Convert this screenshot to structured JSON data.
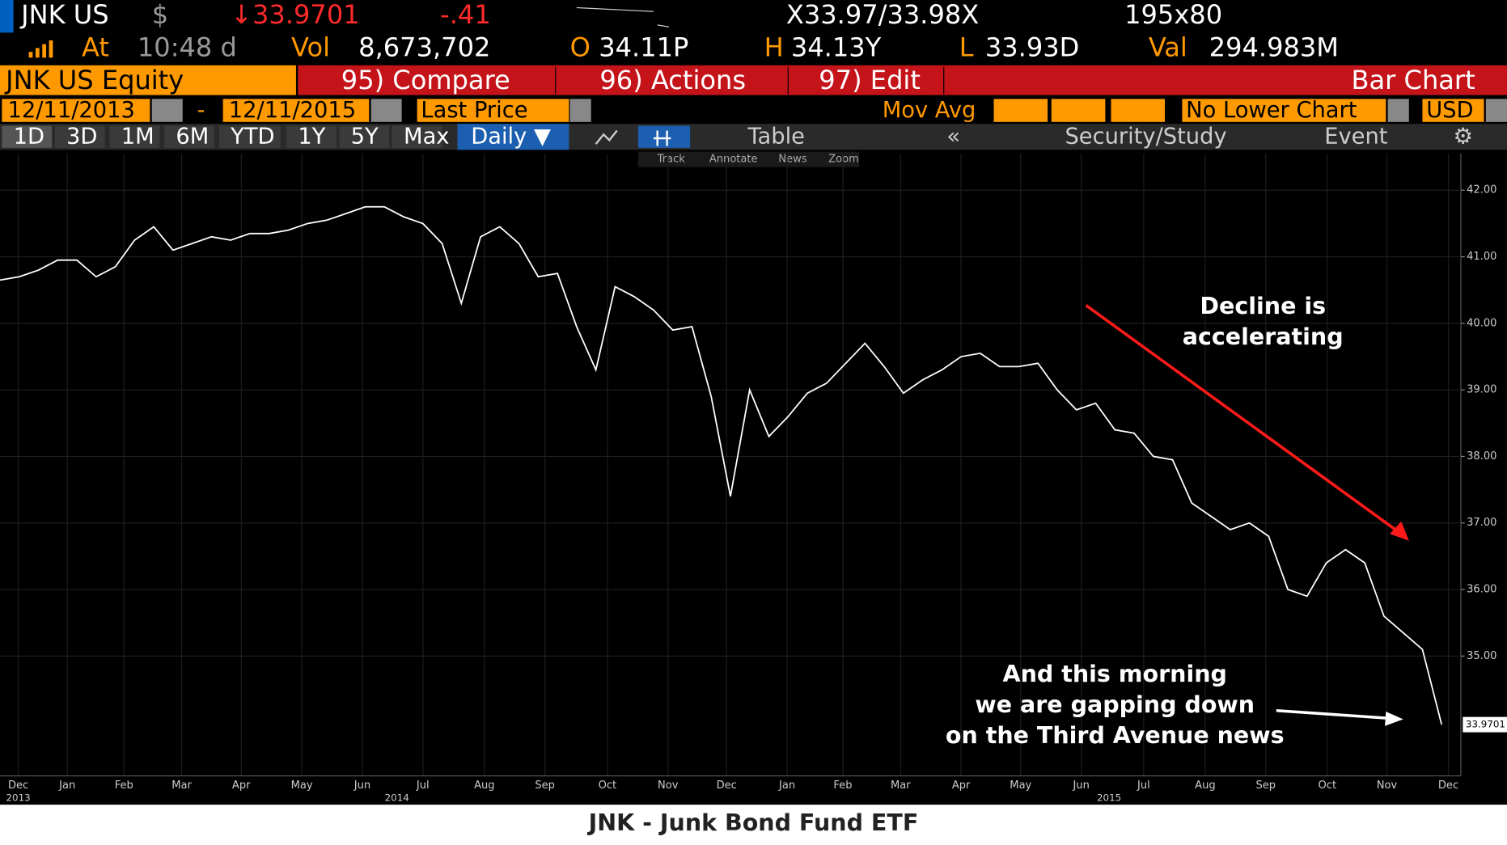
{
  "header": {
    "ticker": "JNK US",
    "currency": "$",
    "last": "↓33.9701",
    "change": "-.41",
    "bid_ask": "X33.97/33.98X",
    "size": "195x80",
    "at_label": "At",
    "time": "10:48 d",
    "vol_label": "Vol",
    "volume": "8,673,702",
    "open_label": "O",
    "open": "34.11P",
    "high_label": "H",
    "high": "34.13Y",
    "low_label": "L",
    "low": "33.93D",
    "val_label": "Val",
    "value": "294.983M"
  },
  "menu": {
    "security": "JNK US Equity",
    "compare": "95) Compare",
    "actions": "96) Actions",
    "edit": "97) Edit",
    "view": "Bar Chart"
  },
  "settings": {
    "start": "12/11/2013",
    "dash": "-",
    "end": "12/11/2015",
    "field": "Last Price",
    "study": "Mov Avg",
    "lower": "No Lower Chart",
    "ccy": "USD"
  },
  "toolbar": {
    "periods": [
      "1D",
      "3D",
      "1M",
      "6M",
      "YTD",
      "1Y",
      "5Y",
      "Max"
    ],
    "frequency": "Daily ▼",
    "table": "Table",
    "security_study": "Security/Study",
    "event": "Event",
    "tools": [
      "Track",
      "Annotate",
      "News",
      "Zoom"
    ]
  },
  "chart": {
    "type": "line",
    "color": "#ffffff",
    "ylim": [
      33.2,
      42.55
    ],
    "yticks": [
      {
        "value": 35,
        "label": "35.00"
      },
      {
        "value": 36,
        "label": "36.00"
      },
      {
        "value": 37,
        "label": "37.00"
      },
      {
        "value": 38,
        "label": "38.00"
      },
      {
        "value": 39,
        "label": "39.00"
      },
      {
        "value": 40,
        "label": "40.00"
      },
      {
        "value": 41,
        "label": "41.00"
      },
      {
        "value": 42,
        "label": "42.00"
      }
    ],
    "months": [
      "Dec",
      "Jan",
      "Feb",
      "Mar",
      "Apr",
      "May",
      "Jun",
      "Jul",
      "Aug",
      "Sep",
      "Oct",
      "Nov",
      "Dec",
      "Jan",
      "Feb",
      "Mar",
      "Apr",
      "May",
      "Jun",
      "Jul",
      "Aug",
      "Sep",
      "Oct",
      "Nov",
      "Dec"
    ],
    "years": [
      "2013",
      "2014",
      "2015"
    ],
    "values": [
      40.65,
      40.7,
      40.8,
      40.95,
      40.95,
      40.7,
      40.85,
      41.25,
      41.45,
      41.1,
      41.2,
      41.3,
      41.25,
      41.35,
      41.35,
      41.4,
      41.5,
      41.55,
      41.65,
      41.75,
      41.75,
      41.6,
      41.5,
      41.2,
      40.3,
      41.3,
      41.45,
      41.2,
      40.7,
      40.75,
      39.95,
      39.3,
      40.55,
      40.4,
      40.2,
      39.9,
      39.95,
      38.9,
      37.4,
      39.0,
      38.3,
      38.6,
      38.95,
      39.1,
      39.4,
      39.7,
      39.35,
      38.95,
      39.15,
      39.3,
      39.5,
      39.55,
      39.35,
      39.35,
      39.4,
      39.0,
      38.7,
      38.8,
      38.4,
      38.35,
      38.0,
      37.95,
      37.3,
      37.1,
      36.9,
      37.0,
      36.8,
      36.0,
      35.9,
      36.4,
      36.6,
      36.4,
      35.6,
      35.35,
      35.1,
      33.97
    ],
    "last_value": 33.9701,
    "annotation_decline": [
      "Decline is",
      "accelerating"
    ],
    "annotation_gap": [
      "And this morning",
      "we are gapping down",
      "on the Third Avenue news"
    ],
    "caption": "JNK - Junk Bond Fund ETF"
  }
}
